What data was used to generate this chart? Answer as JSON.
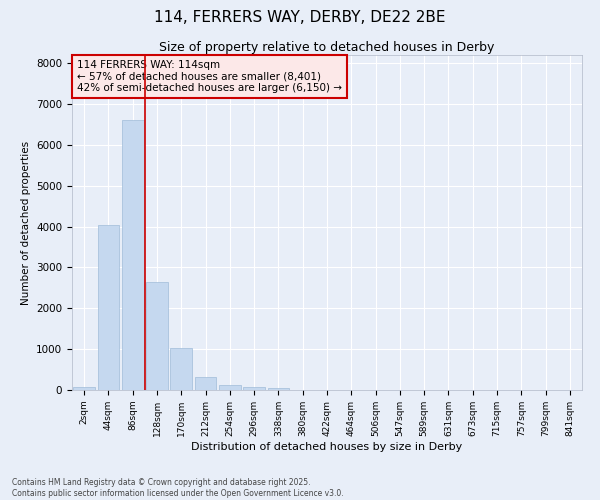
{
  "title1": "114, FERRERS WAY, DERBY, DE22 2BE",
  "title2": "Size of property relative to detached houses in Derby",
  "xlabel": "Distribution of detached houses by size in Derby",
  "ylabel": "Number of detached properties",
  "categories": [
    "2sqm",
    "44sqm",
    "86sqm",
    "128sqm",
    "170sqm",
    "212sqm",
    "254sqm",
    "296sqm",
    "338sqm",
    "380sqm",
    "422sqm",
    "464sqm",
    "506sqm",
    "547sqm",
    "589sqm",
    "631sqm",
    "673sqm",
    "715sqm",
    "757sqm",
    "799sqm",
    "841sqm"
  ],
  "values": [
    70,
    4050,
    6620,
    2650,
    1020,
    330,
    120,
    80,
    60,
    0,
    0,
    0,
    0,
    0,
    0,
    0,
    0,
    0,
    0,
    0,
    0
  ],
  "bar_color": "#c5d8ef",
  "bar_edge_color": "#a0bcd8",
  "vline_color": "#cc0000",
  "vline_pos": 2.5,
  "annotation_text": "114 FERRERS WAY: 114sqm\n← 57% of detached houses are smaller (8,401)\n42% of semi-detached houses are larger (6,150) →",
  "annotation_edge_color": "#cc0000",
  "annotation_face_color": "#fce8e8",
  "ylim": [
    0,
    8200
  ],
  "yticks": [
    0,
    1000,
    2000,
    3000,
    4000,
    5000,
    6000,
    7000,
    8000
  ],
  "background_color": "#e8eef8",
  "grid_color": "#ffffff",
  "footer1": "Contains HM Land Registry data © Crown copyright and database right 2025.",
  "footer2": "Contains public sector information licensed under the Open Government Licence v3.0."
}
